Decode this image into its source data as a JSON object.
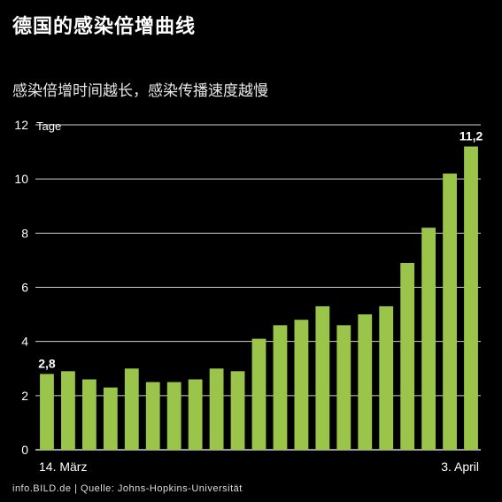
{
  "header": {
    "title": "德国的感染倍增曲线",
    "subtitle": "感染倍增时间越长，感染传播速度越慢"
  },
  "footer": {
    "source": "info.BILD.de | Quelle: Johns-Hopkins-Universität"
  },
  "colors": {
    "background": "#000000",
    "bar": "#9bc44a",
    "grid": "#cfcfcf",
    "text": "#ffffff"
  },
  "chart_data": {
    "type": "bar",
    "unit_label": "Tage",
    "ylim": [
      0,
      12
    ],
    "yticks": [
      0,
      2,
      4,
      6,
      8,
      10,
      12
    ],
    "grid": true,
    "x_start_label": "14. März",
    "x_end_label": "3. April",
    "values": [
      2.8,
      2.9,
      2.6,
      2.3,
      3.0,
      2.5,
      2.5,
      2.6,
      3.0,
      2.9,
      4.1,
      4.6,
      4.8,
      5.3,
      4.6,
      5.0,
      5.3,
      6.9,
      8.2,
      10.2,
      11.2
    ],
    "value_labels": {
      "first": "2,8",
      "last": "11,2"
    }
  }
}
